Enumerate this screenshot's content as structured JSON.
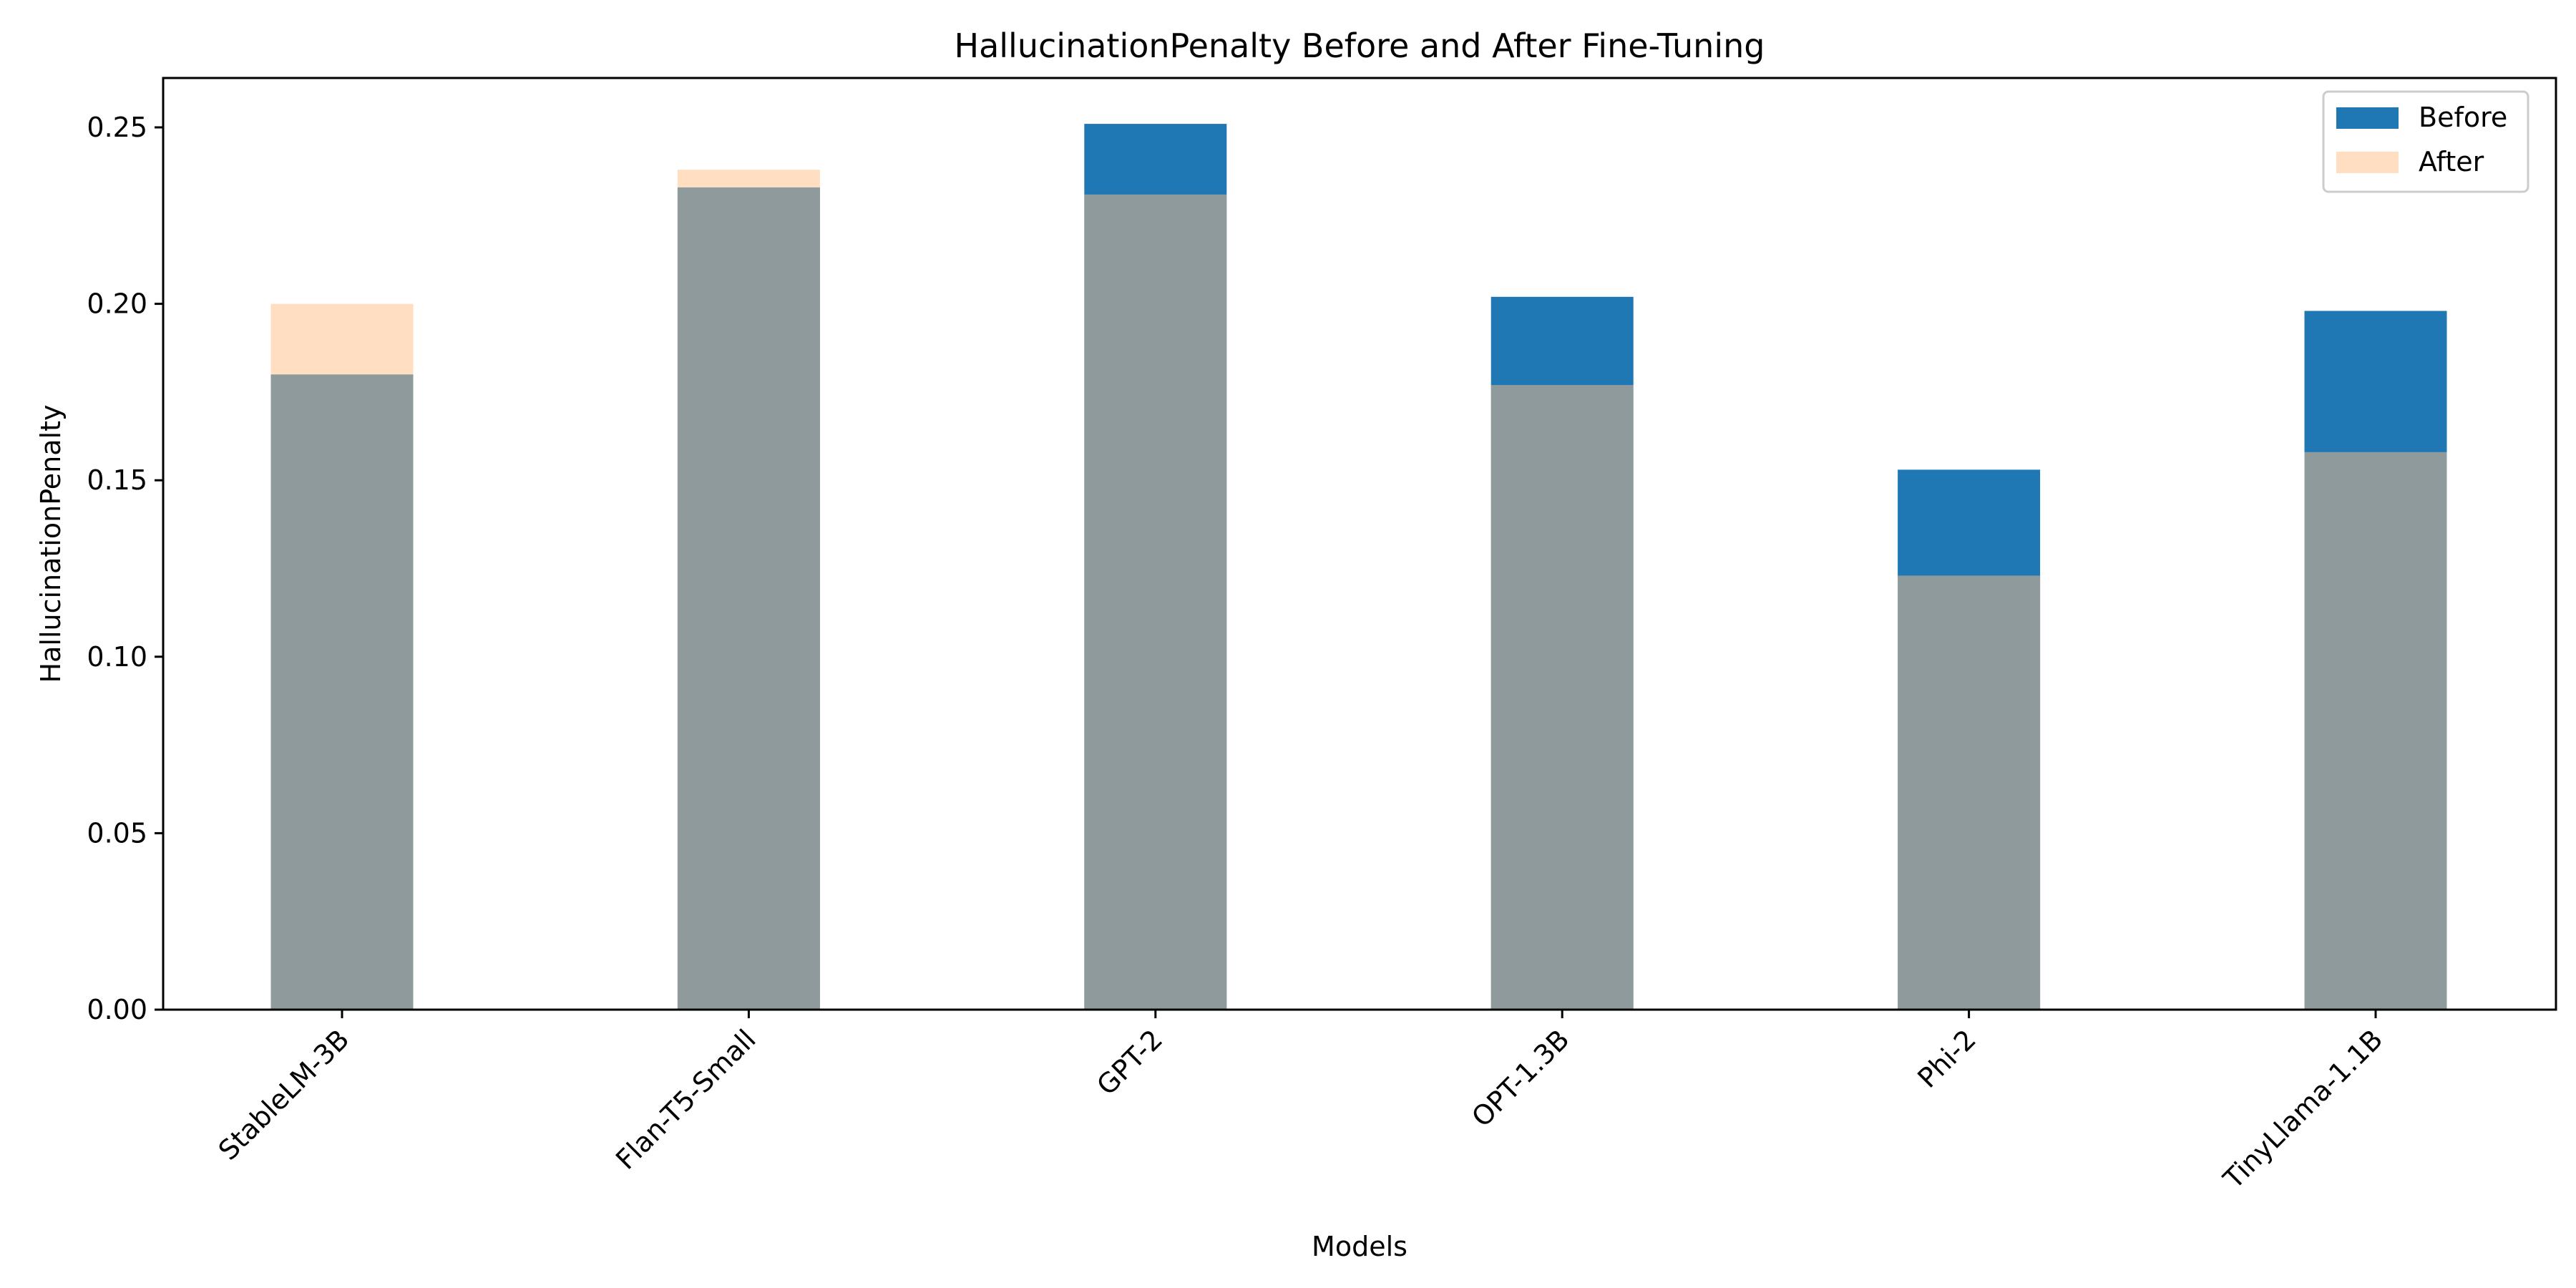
{
  "chart_data": {
    "type": "bar",
    "title": "HallucinationPenalty Before and After Fine-Tuning",
    "xlabel": "Models",
    "ylabel": "HallucinationPenalty",
    "categories": [
      "StableLM-3B",
      "Flan-T5-Small",
      "GPT-2",
      "OPT-1.3B",
      "Phi-2",
      "TinyLlama-1.1B"
    ],
    "series": [
      {
        "name": "Before",
        "color": "#1f77b4",
        "opacity": 1.0,
        "values": [
          0.18,
          0.233,
          0.251,
          0.202,
          0.153,
          0.198
        ]
      },
      {
        "name": "After",
        "color": "#ffbe86",
        "opacity": 0.5,
        "values": [
          0.2,
          0.238,
          0.231,
          0.177,
          0.123,
          0.158
        ]
      }
    ],
    "ylim": [
      0,
      0.264
    ],
    "yticks": [
      "0.00",
      "0.05",
      "0.10",
      "0.15",
      "0.20",
      "0.25"
    ],
    "legend_position": "top-right",
    "grid": false,
    "overlay": true
  }
}
